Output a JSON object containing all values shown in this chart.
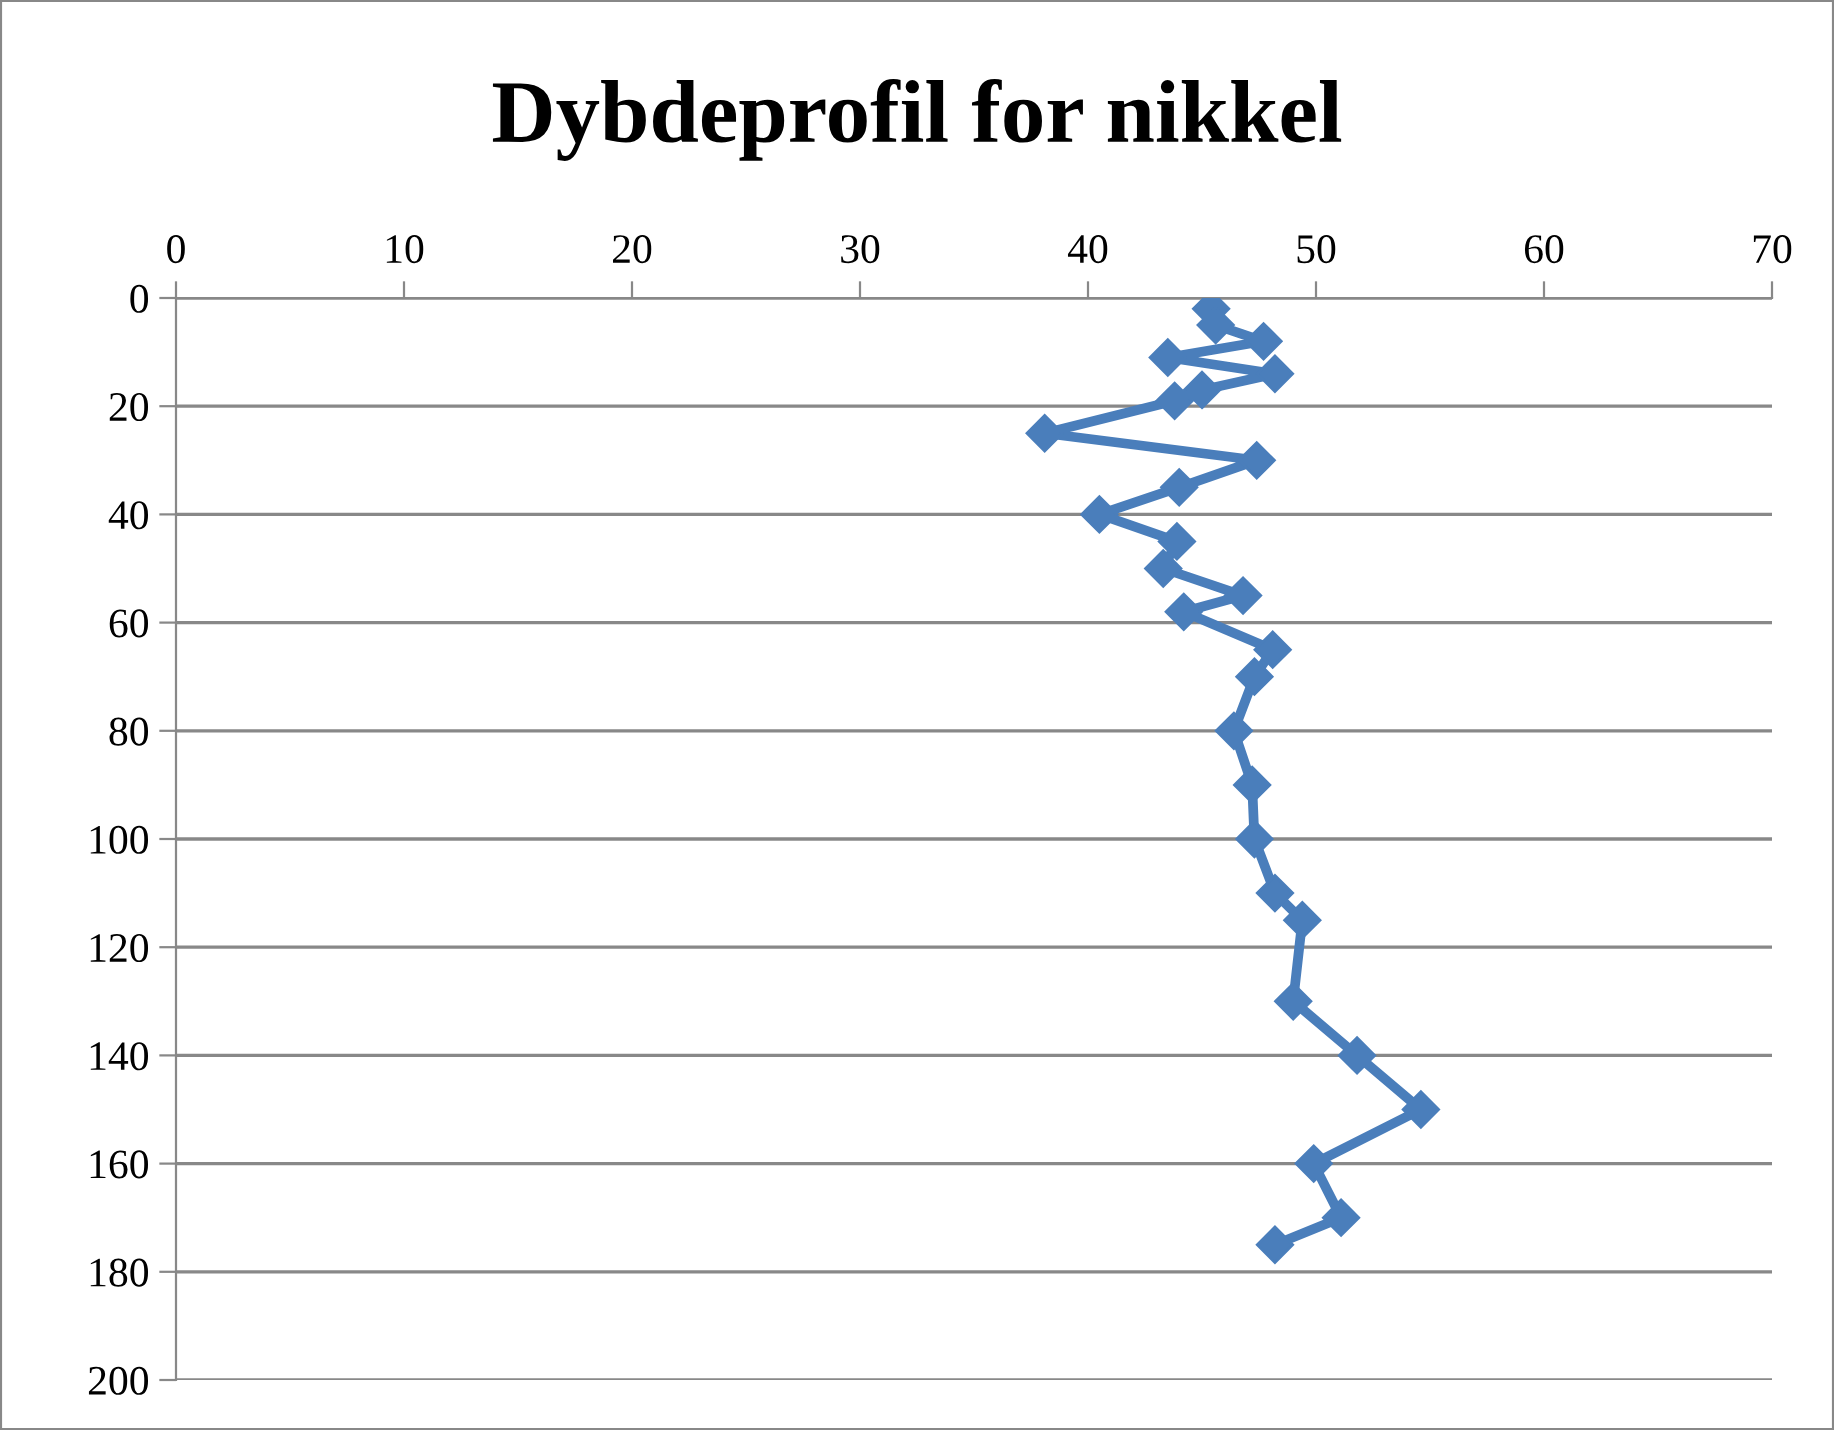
{
  "chart_data": {
    "type": "line",
    "title": "Dybdeprofil for nikkel",
    "series": [
      {
        "color": "#4a7ebb",
        "x": [
          45.4,
          45.6,
          47.7,
          43.5,
          48.2,
          45.0,
          43.8,
          38.1,
          47.4,
          44.0,
          40.5,
          43.9,
          43.3,
          46.8,
          44.2,
          48.1,
          47.3,
          46.4,
          47.2,
          47.3,
          48.2,
          49.4,
          49.0,
          51.8,
          54.6,
          49.9,
          51.1,
          48.2
        ],
        "values": [
          2,
          5,
          8,
          11,
          14,
          17,
          19,
          25,
          30,
          35,
          40,
          45,
          50,
          55,
          58,
          65,
          70,
          80,
          90,
          100,
          110,
          115,
          130,
          140,
          150,
          160,
          170,
          175
        ]
      }
    ],
    "xlim": [
      0,
      70
    ],
    "xticks": [
      0,
      10,
      20,
      30,
      40,
      50,
      60,
      70
    ],
    "ylim": [
      200,
      0
    ],
    "yticks": [
      0,
      20,
      40,
      60,
      80,
      100,
      120,
      140,
      160,
      180,
      200
    ],
    "grid": "y",
    "legend": false,
    "marker": "diamond",
    "line_style": "solid"
  }
}
